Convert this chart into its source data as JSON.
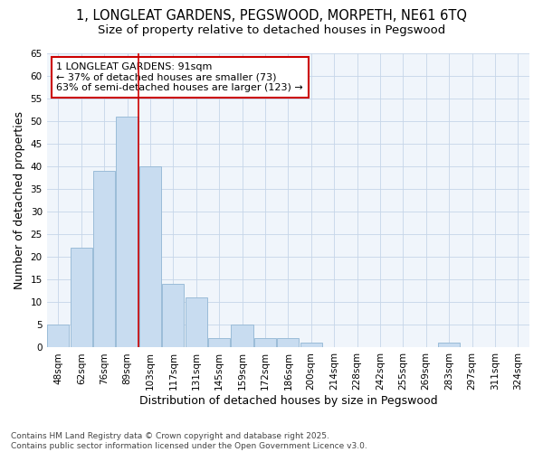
{
  "title_line1": "1, LONGLEAT GARDENS, PEGSWOOD, MORPETH, NE61 6TQ",
  "title_line2": "Size of property relative to detached houses in Pegswood",
  "xlabel": "Distribution of detached houses by size in Pegswood",
  "ylabel": "Number of detached properties",
  "categories": [
    "48sqm",
    "62sqm",
    "76sqm",
    "89sqm",
    "103sqm",
    "117sqm",
    "131sqm",
    "145sqm",
    "159sqm",
    "172sqm",
    "186sqm",
    "200sqm",
    "214sqm",
    "228sqm",
    "242sqm",
    "255sqm",
    "269sqm",
    "283sqm",
    "297sqm",
    "311sqm",
    "324sqm"
  ],
  "values": [
    5,
    22,
    39,
    51,
    40,
    14,
    11,
    2,
    5,
    2,
    2,
    1,
    0,
    0,
    0,
    0,
    0,
    1,
    0,
    0,
    0
  ],
  "bar_color": "#c8dcf0",
  "bar_edge_color": "#9bbcd8",
  "grid_color": "#c5d5e8",
  "background_color": "#ffffff",
  "plot_bg_color": "#f0f5fb",
  "vline_x": 3.5,
  "vline_color": "#cc0000",
  "annotation_text": "1 LONGLEAT GARDENS: 91sqm\n← 37% of detached houses are smaller (73)\n63% of semi-detached houses are larger (123) →",
  "annotation_box_color": "#ffffff",
  "annotation_border_color": "#cc0000",
  "ylim": [
    0,
    65
  ],
  "yticks": [
    0,
    5,
    10,
    15,
    20,
    25,
    30,
    35,
    40,
    45,
    50,
    55,
    60,
    65
  ],
  "footnote": "Contains HM Land Registry data © Crown copyright and database right 2025.\nContains public sector information licensed under the Open Government Licence v3.0.",
  "title_fontsize": 10.5,
  "subtitle_fontsize": 9.5,
  "axis_label_fontsize": 9,
  "tick_fontsize": 7.5,
  "annotation_fontsize": 8,
  "footnote_fontsize": 6.5
}
